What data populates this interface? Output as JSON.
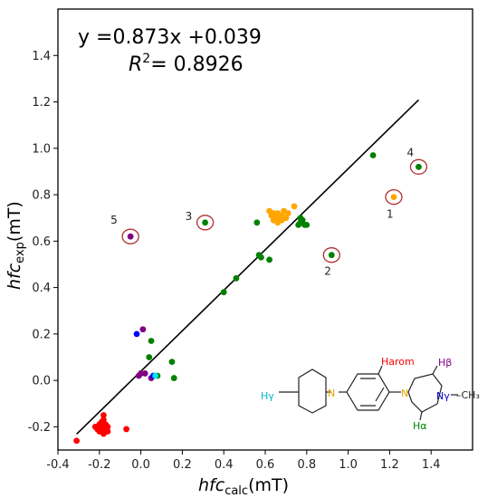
{
  "chart_data": {
    "type": "scatter",
    "xlabel": {
      "main": "hfc",
      "sub": "calc",
      "unit": "(mT)"
    },
    "ylabel": {
      "main": "hfc",
      "sub": "exp",
      "unit": "(mT)"
    },
    "xlim": [
      -0.4,
      1.6
    ],
    "ylim": [
      -0.3,
      1.6
    ],
    "x_ticks": [
      -0.4,
      -0.2,
      0.0,
      0.2,
      0.4,
      0.6,
      0.8,
      1.0,
      1.2,
      1.4
    ],
    "y_ticks": [
      -0.2,
      0.0,
      0.2,
      0.4,
      0.6,
      0.8,
      1.0,
      1.2,
      1.4
    ],
    "equation": {
      "line1": "y =0.873x +0.039",
      "r2_label": "R",
      "r2_sup": "2",
      "r2_value": "= 0.8926"
    },
    "fit": {
      "slope": 0.873,
      "intercept": 0.039,
      "x_range": [
        -0.31,
        1.34
      ]
    },
    "series": [
      {
        "color": "#ff0000",
        "points": [
          [
            -0.31,
            -0.26
          ],
          [
            -0.22,
            -0.2
          ],
          [
            -0.21,
            -0.21
          ],
          [
            -0.2,
            -0.19
          ],
          [
            -0.2,
            -0.22
          ],
          [
            -0.19,
            -0.18
          ],
          [
            -0.19,
            -0.2
          ],
          [
            -0.18,
            -0.21
          ],
          [
            -0.18,
            -0.23
          ],
          [
            -0.17,
            -0.19
          ],
          [
            -0.17,
            -0.21
          ],
          [
            -0.18,
            -0.15
          ],
          [
            -0.18,
            -0.17
          ],
          [
            -0.16,
            -0.2
          ],
          [
            -0.16,
            -0.22
          ],
          [
            -0.07,
            -0.21
          ]
        ]
      },
      {
        "color": "#008000",
        "points": [
          [
            0.04,
            0.1
          ],
          [
            0.05,
            0.17
          ],
          [
            0.08,
            0.02
          ],
          [
            0.15,
            0.08
          ],
          [
            0.16,
            0.01
          ],
          [
            0.4,
            0.38
          ],
          [
            0.46,
            0.44
          ],
          [
            0.56,
            0.68
          ],
          [
            0.57,
            0.54
          ],
          [
            0.58,
            0.53
          ],
          [
            0.62,
            0.52
          ],
          [
            0.76,
            0.67
          ],
          [
            0.77,
            0.68
          ],
          [
            0.78,
            0.69
          ],
          [
            0.79,
            0.67
          ],
          [
            0.8,
            0.67
          ],
          [
            0.77,
            0.7
          ],
          [
            0.31,
            0.68
          ],
          [
            0.92,
            0.54
          ],
          [
            1.12,
            0.97
          ],
          [
            1.34,
            0.92
          ]
        ]
      },
      {
        "color": "#ffa500",
        "points": [
          [
            0.62,
            0.73
          ],
          [
            0.63,
            0.71
          ],
          [
            0.64,
            0.72
          ],
          [
            0.64,
            0.69
          ],
          [
            0.65,
            0.7
          ],
          [
            0.66,
            0.68
          ],
          [
            0.66,
            0.72
          ],
          [
            0.67,
            0.7
          ],
          [
            0.68,
            0.71
          ],
          [
            0.68,
            0.69
          ],
          [
            0.69,
            0.73
          ],
          [
            0.7,
            0.7
          ],
          [
            0.71,
            0.72
          ],
          [
            0.74,
            0.75
          ],
          [
            1.22,
            0.79
          ]
        ]
      },
      {
        "color": "#800080",
        "points": [
          [
            -0.05,
            0.62
          ],
          [
            -0.01,
            0.02
          ],
          [
            0.0,
            0.03
          ],
          [
            0.01,
            0.22
          ],
          [
            0.02,
            0.03
          ],
          [
            0.05,
            0.01
          ]
        ]
      },
      {
        "color": "#0000ff",
        "points": [
          [
            -0.02,
            0.2
          ],
          [
            0.06,
            0.02
          ]
        ]
      },
      {
        "color": "#00e5ee",
        "points": [
          [
            0.07,
            0.02
          ]
        ]
      }
    ],
    "annotations": [
      {
        "label": "1",
        "x": 1.22,
        "y": 0.79
      },
      {
        "label": "2",
        "x": 0.92,
        "y": 0.54
      },
      {
        "label": "3",
        "x": 0.31,
        "y": 0.68
      },
      {
        "label": "4",
        "x": 1.34,
        "y": 0.92
      },
      {
        "label": "5",
        "x": -0.05,
        "y": 0.62
      }
    ]
  },
  "molecule": {
    "h_gamma": "Hγ",
    "h_arom": "Harom",
    "h_beta": "Hβ",
    "h_alpha": "Hα",
    "n_label": "N",
    "n_gamma": "Nγ",
    "ch3": "–CH₃"
  }
}
